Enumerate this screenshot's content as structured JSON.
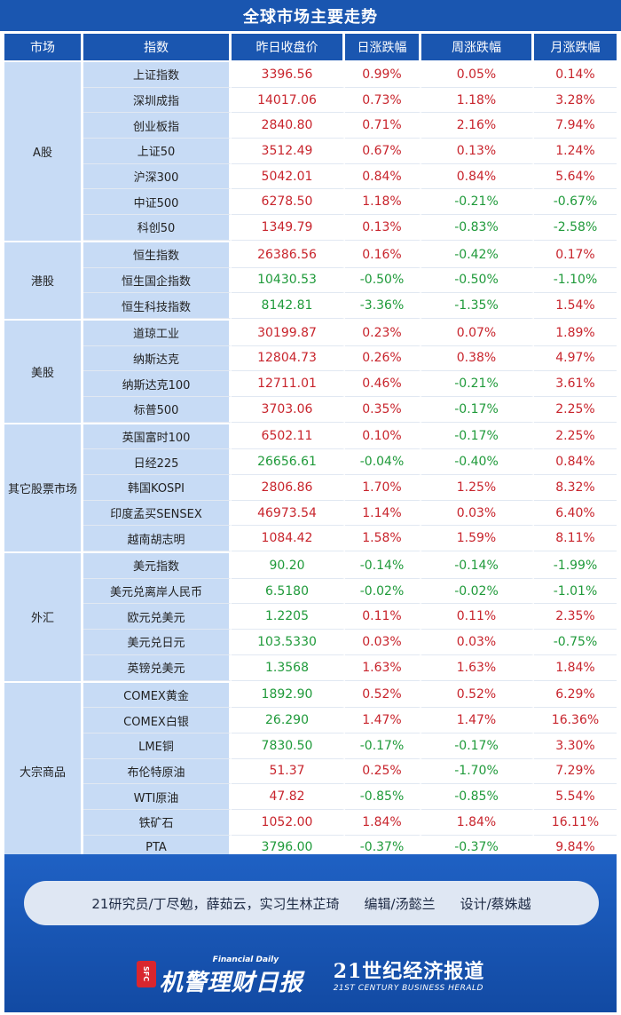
{
  "title": "全球市场主要走势",
  "headers": {
    "market": "市场",
    "index": "指数",
    "close": "昨日收盘价",
    "daily": "日涨跌幅",
    "weekly": "周涨跌幅",
    "monthly": "月涨跌幅"
  },
  "groups": [
    {
      "market": "A股",
      "rows": [
        {
          "name": "上证指数",
          "close": "3396.56",
          "daily": "0.99%",
          "weekly": "0.05%",
          "monthly": "0.14%"
        },
        {
          "name": "深圳成指",
          "close": "14017.06",
          "daily": "0.73%",
          "weekly": "1.18%",
          "monthly": "3.28%"
        },
        {
          "name": "创业板指",
          "close": "2840.80",
          "daily": "0.71%",
          "weekly": "2.16%",
          "monthly": "7.94%"
        },
        {
          "name": "上证50",
          "close": "3512.49",
          "daily": "0.67%",
          "weekly": "0.13%",
          "monthly": "1.24%"
        },
        {
          "name": "沪深300",
          "close": "5042.01",
          "daily": "0.84%",
          "weekly": "0.84%",
          "monthly": "5.64%"
        },
        {
          "name": "中证500",
          "close": "6278.50",
          "daily": "1.18%",
          "weekly": "-0.21%",
          "monthly": "-0.67%"
        },
        {
          "name": "科创50",
          "close": "1349.79",
          "daily": "0.13%",
          "weekly": "-0.83%",
          "monthly": "-2.58%"
        }
      ]
    },
    {
      "market": "港股",
      "rows": [
        {
          "name": "恒生指数",
          "close": "26386.56",
          "daily": "0.16%",
          "weekly": "-0.42%",
          "monthly": "0.17%"
        },
        {
          "name": "恒生国企指数",
          "close": "10430.53",
          "daily": "-0.50%",
          "weekly": "-0.50%",
          "monthly": "-1.10%"
        },
        {
          "name": "恒生科技指数",
          "close": "8142.81",
          "daily": "-3.36%",
          "weekly": "-1.35%",
          "monthly": "1.54%"
        }
      ]
    },
    {
      "market": "美股",
      "rows": [
        {
          "name": "道琼工业",
          "close": "30199.87",
          "daily": "0.23%",
          "weekly": "0.07%",
          "monthly": "1.89%"
        },
        {
          "name": "纳斯达克",
          "close": "12804.73",
          "daily": "0.26%",
          "weekly": "0.38%",
          "monthly": "4.97%"
        },
        {
          "name": "纳斯达克100",
          "close": "12711.01",
          "daily": "0.46%",
          "weekly": "-0.21%",
          "monthly": "3.61%"
        },
        {
          "name": "标普500",
          "close": "3703.06",
          "daily": "0.35%",
          "weekly": "-0.17%",
          "monthly": "2.25%"
        }
      ]
    },
    {
      "market": "其它股票市场",
      "rows": [
        {
          "name": "英国富时100",
          "close": "6502.11",
          "daily": "0.10%",
          "weekly": "-0.17%",
          "monthly": "2.25%"
        },
        {
          "name": "日经225",
          "close": "26656.61",
          "daily": "-0.04%",
          "weekly": "-0.40%",
          "monthly": "0.84%"
        },
        {
          "name": "韩国KOSPI",
          "close": "2806.86",
          "daily": "1.70%",
          "weekly": "1.25%",
          "monthly": "8.32%"
        },
        {
          "name": "印度孟买SENSEX",
          "close": "46973.54",
          "daily": "1.14%",
          "weekly": "0.03%",
          "monthly": "6.40%"
        },
        {
          "name": "越南胡志明",
          "close": "1084.42",
          "daily": "1.58%",
          "weekly": "1.59%",
          "monthly": "8.11%"
        }
      ]
    },
    {
      "market": "外汇",
      "rows": [
        {
          "name": "美元指数",
          "close": "90.20",
          "daily": "-0.14%",
          "weekly": "-0.14%",
          "monthly": "-1.99%"
        },
        {
          "name": "美元兑离岸人民币",
          "close": "6.5180",
          "daily": "-0.02%",
          "weekly": "-0.02%",
          "monthly": "-1.01%"
        },
        {
          "name": "欧元兑美元",
          "close": "1.2205",
          "daily": "0.11%",
          "weekly": "0.11%",
          "monthly": "2.35%"
        },
        {
          "name": "美元兑日元",
          "close": "103.5330",
          "daily": "0.03%",
          "weekly": "0.03%",
          "monthly": "-0.75%"
        },
        {
          "name": "英镑兑美元",
          "close": "1.3568",
          "daily": "1.63%",
          "weekly": "1.63%",
          "monthly": "1.84%"
        }
      ]
    },
    {
      "market": "大宗商品",
      "rows": [
        {
          "name": "COMEX黄金",
          "close": "1892.90",
          "daily": "0.52%",
          "weekly": "0.52%",
          "monthly": "6.29%"
        },
        {
          "name": "COMEX白银",
          "close": "26.290",
          "daily": "1.47%",
          "weekly": "1.47%",
          "monthly": "16.36%"
        },
        {
          "name": "LME铜",
          "close": "7830.50",
          "daily": "-0.17%",
          "weekly": "-0.17%",
          "monthly": "3.30%"
        },
        {
          "name": "布伦特原油",
          "close": "51.37",
          "daily": "0.25%",
          "weekly": "-1.70%",
          "monthly": "7.29%"
        },
        {
          "name": "WTI原油",
          "close": "47.82",
          "daily": "-0.85%",
          "weekly": "-0.85%",
          "monthly": "5.54%"
        },
        {
          "name": "铁矿石",
          "close": "1052.00",
          "daily": "1.84%",
          "weekly": "1.84%",
          "monthly": "16.11%"
        },
        {
          "name": "PTA",
          "close": "3796.00",
          "daily": "-0.37%",
          "weekly": "-0.37%",
          "monthly": "9.84%"
        }
      ]
    }
  ],
  "colors": {
    "up": "#c8242c",
    "down": "#1f9a3a",
    "header_bg": "#1a56b0",
    "label_bg": "#c7dbf5"
  },
  "close_color": {
    "上证指数": "up",
    "深圳成指": "up",
    "创业板指": "up",
    "上证50": "up",
    "沪深300": "up",
    "中证500": "up",
    "科创50": "up",
    "恒生指数": "up",
    "恒生国企指数": "down",
    "恒生科技指数": "down",
    "道琼工业": "up",
    "纳斯达克": "up",
    "纳斯达克100": "up",
    "标普500": "up",
    "英国富时100": "up",
    "日经225": "down",
    "韩国KOSPI": "up",
    "印度孟买SENSEX": "up",
    "越南胡志明": "up",
    "美元指数": "down",
    "美元兑离岸人民币": "down",
    "欧元兑美元": "down",
    "美元兑日元": "down",
    "英镑兑美元": "down",
    "COMEX黄金": "down",
    "COMEX白银": "down",
    "LME铜": "down",
    "布伦特原油": "up",
    "WTI原油": "up",
    "铁矿石": "up",
    "PTA": "down"
  },
  "footer": {
    "credit_research": "21研究员/丁尽勉，薛茹云，实习生林芷琦",
    "credit_editor": "编辑/汤懿兰",
    "credit_design": "设计/蔡姝越",
    "logo1_badge": "SFC",
    "logo1_main": "机警理财日报",
    "logo1_sub": "Financial Daily",
    "logo2_main": "21世纪经济报道",
    "logo2_sub": "21ST CENTURY BUSINESS HERALD"
  }
}
